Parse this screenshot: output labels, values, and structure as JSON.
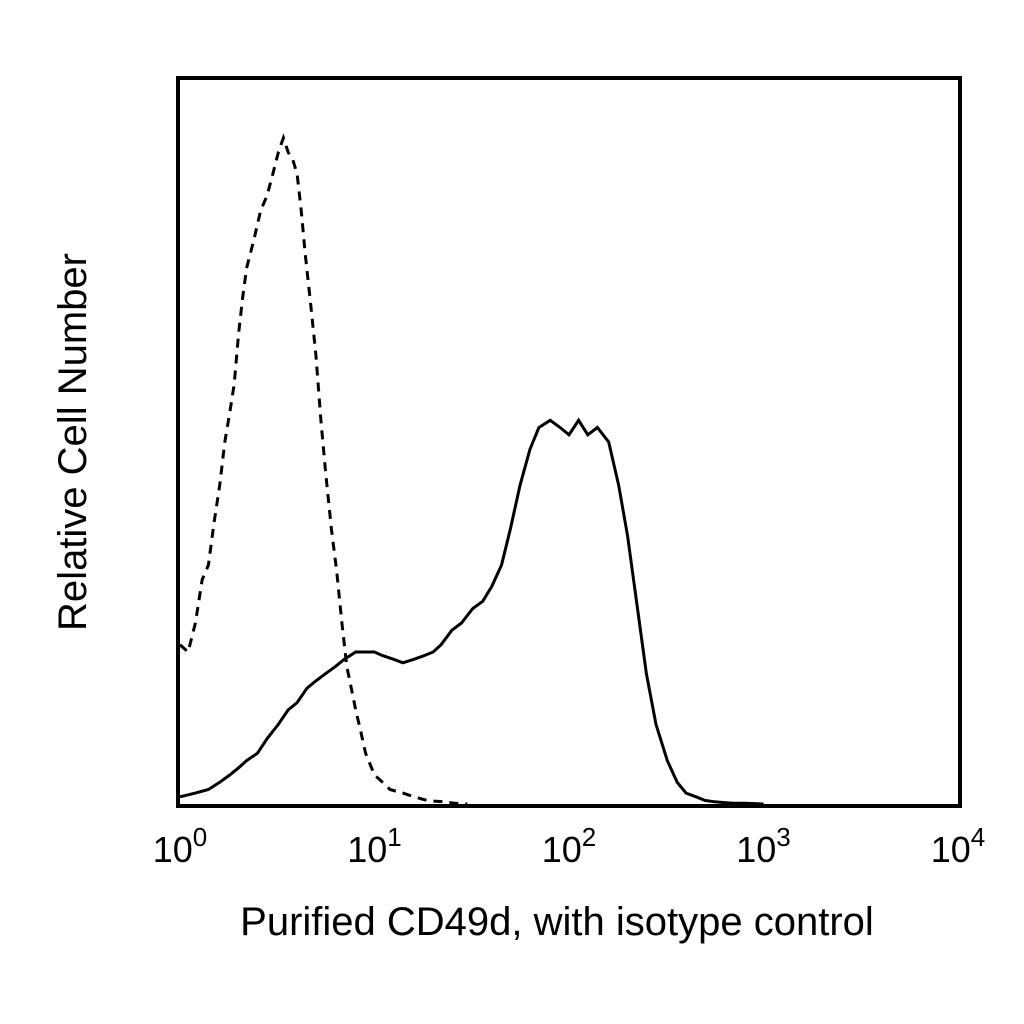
{
  "chart_data": {
    "type": "line",
    "title": "",
    "xlabel": "Purified CD49d, with isotype control",
    "ylabel": "Relative Cell Number",
    "x_scale": "log",
    "xlim": [
      1,
      10000
    ],
    "ylim": [
      0,
      100
    ],
    "grid": false,
    "x_ticks": [
      {
        "value": 1,
        "base": "10",
        "exp": "0"
      },
      {
        "value": 10,
        "base": "10",
        "exp": "1"
      },
      {
        "value": 100,
        "base": "10",
        "exp": "2"
      },
      {
        "value": 1000,
        "base": "10",
        "exp": "3"
      },
      {
        "value": 10000,
        "base": "10",
        "exp": "4"
      }
    ],
    "series": [
      {
        "style": "dashed",
        "color": "#000000",
        "x": [
          1.0,
          1.1,
          1.2,
          1.3,
          1.4,
          1.5,
          1.6,
          1.7,
          1.8,
          1.9,
          2.0,
          2.1,
          2.2,
          2.4,
          2.6,
          2.8,
          3.0,
          3.2,
          3.4,
          3.6,
          3.8,
          4.0,
          4.2,
          4.4,
          4.7,
          5.0,
          5.3,
          5.6,
          6.0,
          6.4,
          6.8,
          7.2,
          7.6,
          8.0,
          8.5,
          9.0,
          10,
          11,
          12,
          14,
          16,
          18,
          20,
          23,
          26,
          30
        ],
        "y": [
          22,
          21,
          25,
          31,
          33,
          39,
          44,
          50,
          54,
          58,
          65,
          70,
          74,
          78,
          82,
          84,
          87,
          90,
          92,
          90,
          89,
          87,
          82,
          76,
          69,
          62,
          53,
          46,
          38,
          32,
          25,
          19,
          16,
          13,
          10,
          7,
          4,
          3,
          2,
          1.5,
          1,
          0.6,
          0.4,
          0.3,
          0.1,
          0
        ]
      },
      {
        "style": "solid",
        "color": "#000000",
        "x": [
          1.0,
          1.2,
          1.4,
          1.6,
          1.8,
          2.0,
          2.2,
          2.5,
          2.8,
          3.2,
          3.6,
          4.0,
          4.5,
          5.0,
          5.6,
          6.3,
          7.0,
          8.0,
          9.0,
          10,
          11,
          12.5,
          14,
          16,
          18,
          20,
          22,
          25,
          28,
          32,
          36,
          40,
          45,
          50,
          56,
          63,
          70,
          80,
          90,
          100,
          112,
          125,
          140,
          160,
          180,
          200,
          225,
          250,
          280,
          320,
          360,
          400,
          450,
          500,
          560,
          630,
          700,
          800,
          900,
          1000
        ],
        "y": [
          1,
          1.5,
          2,
          3,
          4,
          5,
          6,
          7,
          9,
          11,
          13,
          14,
          16,
          17,
          18,
          19,
          20,
          21,
          21,
          21,
          20.5,
          20,
          19.5,
          20,
          20.5,
          21,
          22,
          24,
          25,
          27,
          28,
          30,
          33,
          38,
          44,
          49,
          52,
          53,
          52,
          51,
          53,
          51,
          52,
          50,
          44,
          37,
          27,
          18,
          11,
          6,
          3,
          1.5,
          1,
          0.5,
          0.3,
          0.2,
          0.1,
          0.1,
          0.05,
          0
        ]
      }
    ]
  }
}
